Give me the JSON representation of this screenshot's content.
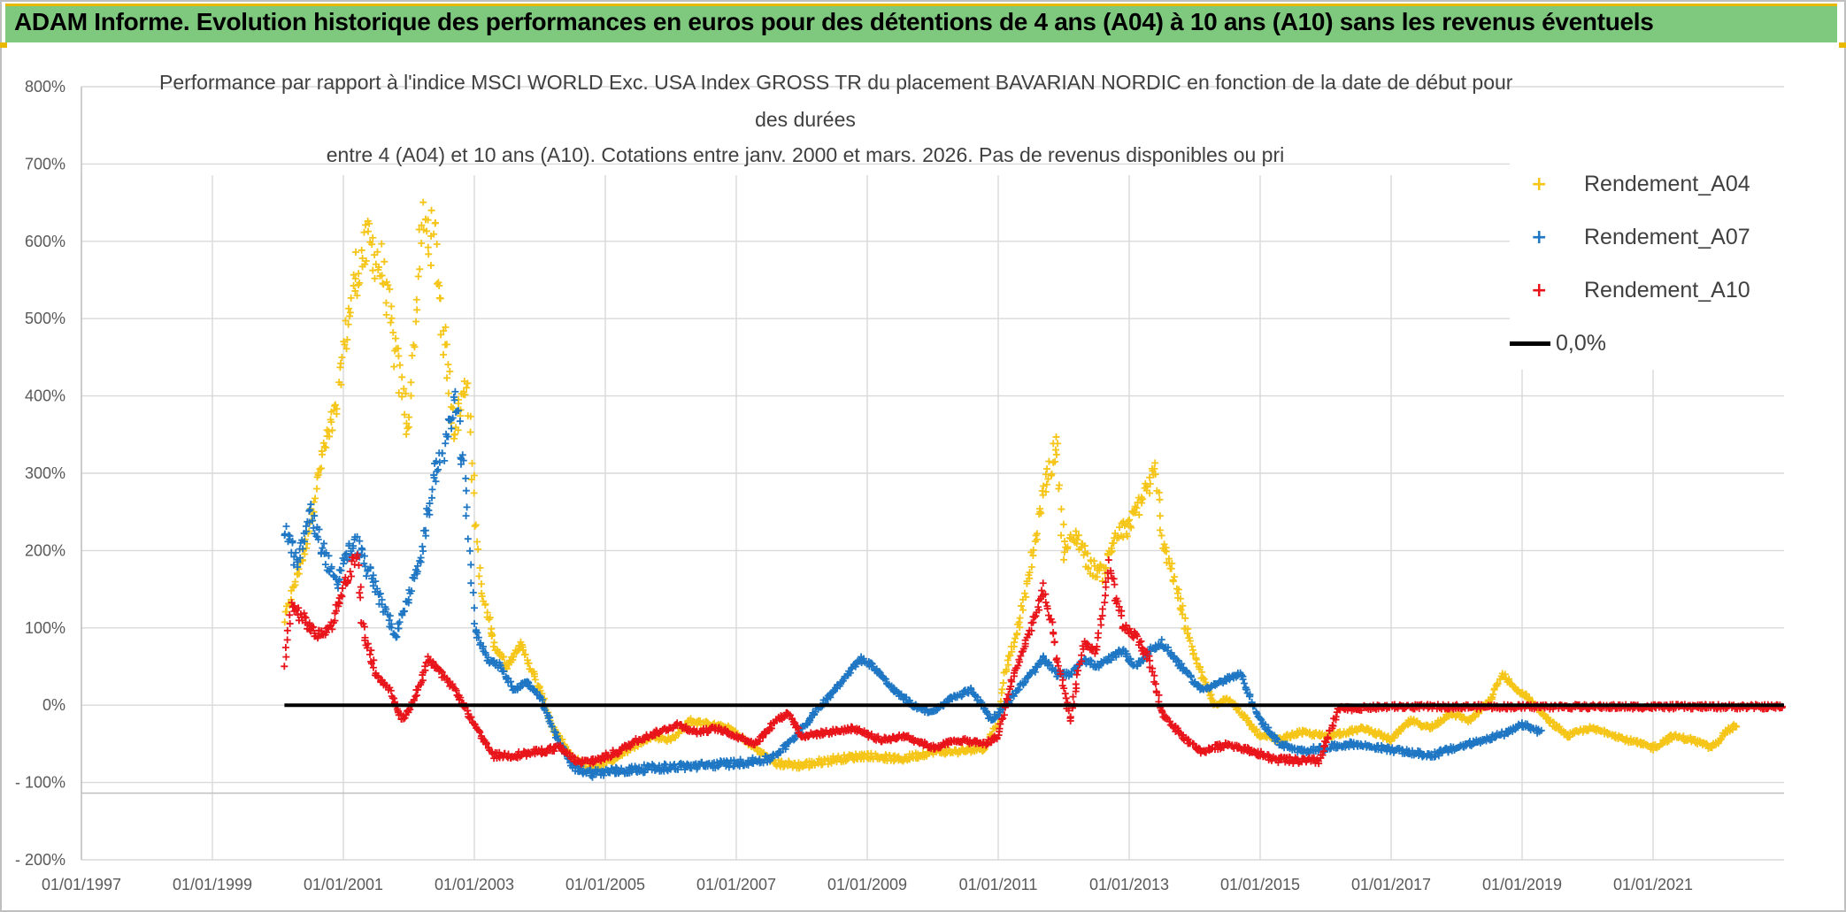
{
  "header": {
    "title": "ADAM Informe. Evolution historique des performances en euros pour des détentions de 4 ans (A04) à 10 ans (A10) sans les revenus éventuels"
  },
  "chart_data": {
    "type": "scatter",
    "title_lines": [
      "Performance par rapport à l'indice MSCI WORLD Exc. USA Index GROSS TR  du placement BAVARIAN NORDIC en fonction de la date de début pour",
      "des durées",
      "entre 4 (A04) et 10 ans (A10). Cotations entre janv. 2000 et mars. 2026. Pas de revenus disponibles ou pri"
    ],
    "xlim": [
      1997.0,
      2023.0
    ],
    "ylim": [
      -200,
      800
    ],
    "x_tick_labels": [
      "01/01/1997",
      "01/01/1999",
      "01/01/2001",
      "01/01/2003",
      "01/01/2005",
      "01/01/2007",
      "01/01/2009",
      "01/01/2011",
      "01/01/2013",
      "01/01/2015",
      "01/01/2017",
      "01/01/2019",
      "01/01/2021"
    ],
    "x_tick_values": [
      1997,
      1999,
      2001,
      2003,
      2005,
      2007,
      2009,
      2011,
      2013,
      2015,
      2017,
      2019,
      2021
    ],
    "y_tick_labels": [
      "800%",
      "700%",
      "600%",
      "500%",
      "400%",
      "300%",
      "200%",
      "100%",
      "0%",
      "- 100%",
      "- 200%"
    ],
    "y_tick_values": [
      800,
      700,
      600,
      500,
      400,
      300,
      200,
      100,
      0,
      -100,
      -200
    ],
    "grid": true,
    "legend_position": "top-right",
    "series": [
      {
        "name": "Rendement_A04",
        "color": "#f5c518",
        "marker": "+",
        "anchors": [
          [
            2000.1,
            110
          ],
          [
            2000.4,
            200
          ],
          [
            2000.7,
            330
          ],
          [
            2000.9,
            380
          ],
          [
            2001.0,
            460
          ],
          [
            2001.2,
            560
          ],
          [
            2001.4,
            600
          ],
          [
            2001.6,
            560
          ],
          [
            2001.8,
            450
          ],
          [
            2002.0,
            360
          ],
          [
            2002.1,
            500
          ],
          [
            2002.2,
            620
          ],
          [
            2002.4,
            600
          ],
          [
            2002.5,
            500
          ],
          [
            2002.7,
            360
          ],
          [
            2002.9,
            420
          ],
          [
            2003.0,
            260
          ],
          [
            2003.1,
            150
          ],
          [
            2003.3,
            80
          ],
          [
            2003.5,
            50
          ],
          [
            2003.7,
            80
          ],
          [
            2004.0,
            20
          ],
          [
            2004.2,
            -30
          ],
          [
            2004.5,
            -70
          ],
          [
            2004.8,
            -80
          ],
          [
            2005.1,
            -70
          ],
          [
            2005.4,
            -55
          ],
          [
            2005.7,
            -40
          ],
          [
            2006.0,
            -45
          ],
          [
            2006.3,
            -20
          ],
          [
            2006.6,
            -25
          ],
          [
            2006.9,
            -30
          ],
          [
            2007.2,
            -50
          ],
          [
            2007.6,
            -75
          ],
          [
            2008.0,
            -78
          ],
          [
            2008.5,
            -70
          ],
          [
            2009.0,
            -65
          ],
          [
            2009.5,
            -70
          ],
          [
            2010.0,
            -60
          ],
          [
            2010.4,
            -60
          ],
          [
            2010.8,
            -55
          ],
          [
            2011.0,
            -20
          ],
          [
            2011.1,
            40
          ],
          [
            2011.3,
            100
          ],
          [
            2011.5,
            180
          ],
          [
            2011.7,
            280
          ],
          [
            2011.9,
            340
          ],
          [
            2012.0,
            200
          ],
          [
            2012.2,
            220
          ],
          [
            2012.4,
            180
          ],
          [
            2012.6,
            170
          ],
          [
            2012.8,
            220
          ],
          [
            2013.0,
            230
          ],
          [
            2013.2,
            270
          ],
          [
            2013.4,
            300
          ],
          [
            2013.5,
            220
          ],
          [
            2013.7,
            160
          ],
          [
            2013.9,
            90
          ],
          [
            2014.1,
            40
          ],
          [
            2014.3,
            0
          ],
          [
            2014.5,
            10
          ],
          [
            2014.8,
            -20
          ],
          [
            2015.0,
            -40
          ],
          [
            2015.3,
            -45
          ],
          [
            2015.6,
            -35
          ],
          [
            2016.0,
            -40
          ],
          [
            2016.3,
            -35
          ],
          [
            2016.6,
            -30
          ],
          [
            2017.0,
            -45
          ],
          [
            2017.3,
            -20
          ],
          [
            2017.6,
            -30
          ],
          [
            2017.9,
            -10
          ],
          [
            2018.2,
            -20
          ],
          [
            2018.5,
            5
          ],
          [
            2018.7,
            40
          ],
          [
            2018.9,
            20
          ],
          [
            2019.1,
            10
          ],
          [
            2019.4,
            -20
          ],
          [
            2019.7,
            -40
          ],
          [
            2020.0,
            -30
          ],
          [
            2020.3,
            -35
          ],
          [
            2020.6,
            -45
          ],
          [
            2021.0,
            -55
          ],
          [
            2021.3,
            -40
          ],
          [
            2021.6,
            -45
          ],
          [
            2021.9,
            -55
          ],
          [
            2022.1,
            -35
          ],
          [
            2022.3,
            -25
          ]
        ]
      },
      {
        "name": "Rendement_A07",
        "color": "#1f77c4",
        "marker": "+",
        "anchors": [
          [
            2000.1,
            230
          ],
          [
            2000.3,
            180
          ],
          [
            2000.5,
            250
          ],
          [
            2000.7,
            200
          ],
          [
            2000.9,
            150
          ],
          [
            2001.0,
            190
          ],
          [
            2001.2,
            210
          ],
          [
            2001.4,
            170
          ],
          [
            2001.6,
            130
          ],
          [
            2001.8,
            90
          ],
          [
            2002.0,
            140
          ],
          [
            2002.2,
            200
          ],
          [
            2002.4,
            300
          ],
          [
            2002.6,
            350
          ],
          [
            2002.7,
            400
          ],
          [
            2002.9,
            250
          ],
          [
            2003.0,
            100
          ],
          [
            2003.2,
            60
          ],
          [
            2003.4,
            50
          ],
          [
            2003.6,
            20
          ],
          [
            2003.8,
            30
          ],
          [
            2004.0,
            10
          ],
          [
            2004.2,
            -30
          ],
          [
            2004.5,
            -80
          ],
          [
            2004.8,
            -88
          ],
          [
            2005.2,
            -85
          ],
          [
            2005.6,
            -82
          ],
          [
            2006.0,
            -80
          ],
          [
            2006.5,
            -78
          ],
          [
            2007.0,
            -75
          ],
          [
            2007.5,
            -70
          ],
          [
            2007.8,
            -50
          ],
          [
            2008.0,
            -30
          ],
          [
            2008.3,
            0
          ],
          [
            2008.6,
            30
          ],
          [
            2008.9,
            60
          ],
          [
            2009.1,
            50
          ],
          [
            2009.4,
            20
          ],
          [
            2009.7,
            0
          ],
          [
            2010.0,
            -10
          ],
          [
            2010.3,
            10
          ],
          [
            2010.6,
            20
          ],
          [
            2010.9,
            -20
          ],
          [
            2011.1,
            0
          ],
          [
            2011.3,
            20
          ],
          [
            2011.5,
            40
          ],
          [
            2011.7,
            60
          ],
          [
            2011.9,
            40
          ],
          [
            2012.1,
            40
          ],
          [
            2012.3,
            60
          ],
          [
            2012.5,
            50
          ],
          [
            2012.7,
            60
          ],
          [
            2012.9,
            70
          ],
          [
            2013.1,
            50
          ],
          [
            2013.3,
            70
          ],
          [
            2013.5,
            80
          ],
          [
            2013.7,
            60
          ],
          [
            2013.9,
            40
          ],
          [
            2014.1,
            20
          ],
          [
            2014.4,
            30
          ],
          [
            2014.7,
            40
          ],
          [
            2015.0,
            -20
          ],
          [
            2015.3,
            -50
          ],
          [
            2015.6,
            -60
          ],
          [
            2016.0,
            -55
          ],
          [
            2016.4,
            -50
          ],
          [
            2016.8,
            -55
          ],
          [
            2017.2,
            -60
          ],
          [
            2017.6,
            -65
          ],
          [
            2018.0,
            -55
          ],
          [
            2018.4,
            -45
          ],
          [
            2018.8,
            -35
          ],
          [
            2019.0,
            -25
          ],
          [
            2019.3,
            -35
          ]
        ]
      },
      {
        "name": "Rendement_A10",
        "color": "#e8151b",
        "marker": "+",
        "anchors": [
          [
            2000.1,
            50
          ],
          [
            2000.2,
            130
          ],
          [
            2000.4,
            110
          ],
          [
            2000.6,
            90
          ],
          [
            2000.8,
            100
          ],
          [
            2001.0,
            150
          ],
          [
            2001.1,
            170
          ],
          [
            2001.2,
            200
          ],
          [
            2001.3,
            100
          ],
          [
            2001.5,
            40
          ],
          [
            2001.7,
            20
          ],
          [
            2001.9,
            -20
          ],
          [
            2002.1,
            10
          ],
          [
            2002.3,
            60
          ],
          [
            2002.5,
            40
          ],
          [
            2002.7,
            20
          ],
          [
            2002.9,
            -10
          ],
          [
            2003.1,
            -40
          ],
          [
            2003.3,
            -65
          ],
          [
            2003.6,
            -65
          ],
          [
            2004.0,
            -60
          ],
          [
            2004.3,
            -55
          ],
          [
            2004.6,
            -75
          ],
          [
            2004.9,
            -70
          ],
          [
            2005.2,
            -60
          ],
          [
            2005.5,
            -45
          ],
          [
            2005.8,
            -35
          ],
          [
            2006.1,
            -25
          ],
          [
            2006.4,
            -35
          ],
          [
            2006.7,
            -30
          ],
          [
            2007.0,
            -40
          ],
          [
            2007.3,
            -50
          ],
          [
            2007.6,
            -20
          ],
          [
            2007.8,
            -10
          ],
          [
            2008.0,
            -40
          ],
          [
            2008.4,
            -35
          ],
          [
            2008.8,
            -30
          ],
          [
            2009.2,
            -45
          ],
          [
            2009.6,
            -40
          ],
          [
            2010.0,
            -55
          ],
          [
            2010.4,
            -45
          ],
          [
            2010.8,
            -50
          ],
          [
            2011.0,
            -40
          ],
          [
            2011.2,
            30
          ],
          [
            2011.5,
            100
          ],
          [
            2011.7,
            150
          ],
          [
            2011.9,
            60
          ],
          [
            2012.1,
            -20
          ],
          [
            2012.3,
            80
          ],
          [
            2012.5,
            70
          ],
          [
            2012.7,
            180
          ],
          [
            2012.9,
            100
          ],
          [
            2013.1,
            90
          ],
          [
            2013.3,
            60
          ],
          [
            2013.5,
            -10
          ],
          [
            2013.8,
            -40
          ],
          [
            2014.1,
            -60
          ],
          [
            2014.5,
            -50
          ],
          [
            2014.9,
            -60
          ],
          [
            2015.2,
            -70
          ],
          [
            2015.6,
            -72
          ],
          [
            2015.9,
            -72
          ],
          [
            2016.2,
            -5
          ],
          [
            2017.0,
            -2
          ],
          [
            2018.0,
            -2
          ],
          [
            2019.0,
            -2
          ],
          [
            2020.0,
            -2
          ],
          [
            2021.0,
            -2
          ],
          [
            2022.0,
            -2
          ],
          [
            2023.0,
            -2
          ]
        ]
      },
      {
        "name": "0,0%",
        "color": "#000000",
        "marker": "line",
        "x": [
          2000.1,
          2023.0
        ],
        "values": [
          0,
          0
        ]
      }
    ]
  }
}
